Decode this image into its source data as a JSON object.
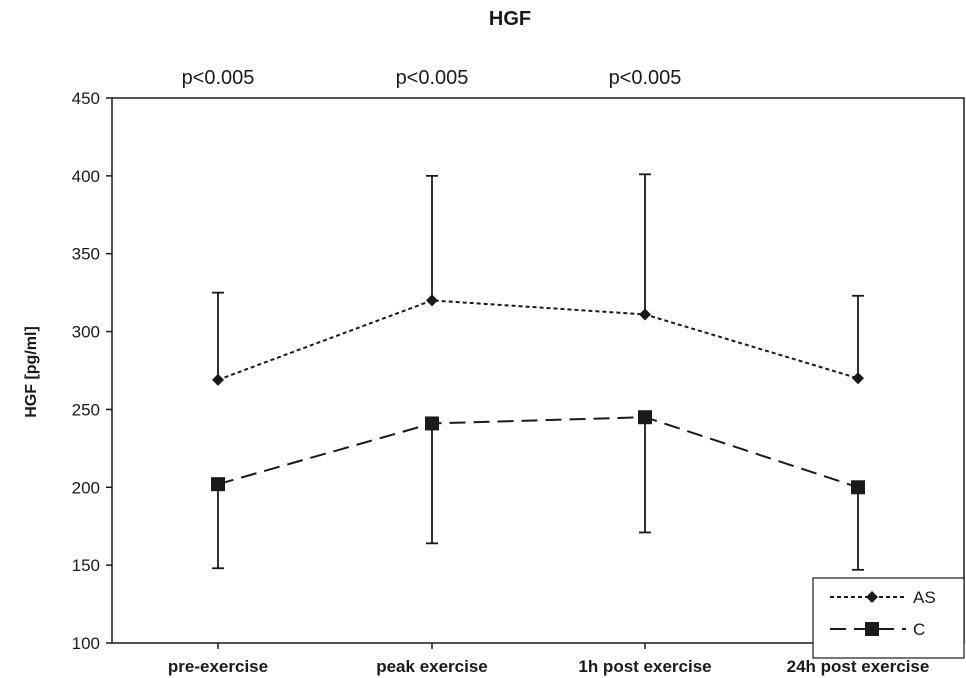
{
  "chart_data": {
    "type": "line",
    "title": "HGF",
    "xlabel": "",
    "ylabel": "HGF [pg/ml]",
    "ylim": [
      100,
      450
    ],
    "yticks": [
      100,
      150,
      200,
      250,
      300,
      350,
      400,
      450
    ],
    "categories": [
      "pre-exercise",
      "peak exercise",
      "1h post exercise",
      "24h post exercise"
    ],
    "annotations": [
      "p<0.005",
      "p<0.005",
      "p<0.005",
      ""
    ],
    "grid": false,
    "legend_position": "bottom-right",
    "series": [
      {
        "name": "AS",
        "marker": "diamond",
        "line_style": "dotted",
        "color": "#1a1a1a",
        "values": [
          269,
          320,
          311,
          270
        ],
        "error_upper": [
          325,
          400,
          401,
          323
        ]
      },
      {
        "name": "C",
        "marker": "square",
        "line_style": "dashed",
        "color": "#1a1a1a",
        "values": [
          202,
          241,
          245,
          200
        ],
        "error_lower": [
          148,
          164,
          171,
          147
        ]
      }
    ]
  }
}
